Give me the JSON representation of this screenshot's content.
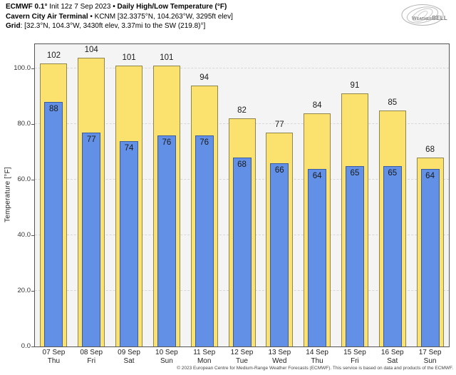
{
  "header": {
    "lines": [
      [
        {
          "text": "ECMWF 0.1°",
          "bold": true
        },
        {
          "text": " Init 12z 7 Sep 2023 ",
          "bold": false
        },
        {
          "text": "• Daily High/Low Temperature (°F)",
          "bold": true
        }
      ],
      [
        {
          "text": "Cavern City Air Terminal",
          "bold": true
        },
        {
          "text": " • KCNM [32.3375°N, 104.263°W, 3295ft elev]",
          "bold": false
        }
      ],
      [
        {
          "text": "Grid",
          "bold": true
        },
        {
          "text": ": [32.3°N, 104.3°W, 3430ft elev, 3.37mi to the SW (219.8)°]",
          "bold": false
        }
      ]
    ]
  },
  "logo": {
    "text_weather": "Weather",
    "text_bell": "BELL",
    "subtext": "Analytics LLC"
  },
  "chart_data": {
    "type": "bar",
    "title": "ECMWF 0.1° Init 12z 7 Sep 2023 • Daily High/Low Temperature (°F)",
    "subtitle": "Cavern City Air Terminal • KCNM [32.3375°N, 104.263°W, 3295ft elev]",
    "xlabel": "",
    "ylabel": "Temperature [°F]",
    "ylim": [
      0,
      108.8
    ],
    "grid": "dashed horizontal",
    "legend": "none",
    "yticks": [
      {
        "value": 0,
        "label": "0.0"
      },
      {
        "value": 20,
        "label": "20.0"
      },
      {
        "value": 40,
        "label": "40.0"
      },
      {
        "value": 60,
        "label": "60.0"
      },
      {
        "value": 80,
        "label": "80.0"
      },
      {
        "value": 100,
        "label": "100.0"
      }
    ],
    "days": [
      {
        "date": "07 Sep",
        "dow": "Thu",
        "high": 102,
        "low": 88
      },
      {
        "date": "08 Sep",
        "dow": "Fri",
        "high": 104,
        "low": 77
      },
      {
        "date": "09 Sep",
        "dow": "Sat",
        "high": 101,
        "low": 74
      },
      {
        "date": "10 Sep",
        "dow": "Sun",
        "high": 101,
        "low": 76
      },
      {
        "date": "11 Sep",
        "dow": "Mon",
        "high": 94,
        "low": 76
      },
      {
        "date": "12 Sep",
        "dow": "Tue",
        "high": 82,
        "low": 68
      },
      {
        "date": "13 Sep",
        "dow": "Wed",
        "high": 77,
        "low": 66
      },
      {
        "date": "14 Sep",
        "dow": "Thu",
        "high": 84,
        "low": 64
      },
      {
        "date": "15 Sep",
        "dow": "Fri",
        "high": 91,
        "low": 65
      },
      {
        "date": "16 Sep",
        "dow": "Sat",
        "high": 85,
        "low": 65
      },
      {
        "date": "17 Sep",
        "dow": "Sun",
        "high": 68,
        "low": 64
      }
    ]
  },
  "colors": {
    "high_fill": "#fbe26e",
    "high_border": "#8f854f",
    "low_fill": "#6190e6",
    "low_border": "#3b5c9e",
    "plot_bg": "#f4f4f4",
    "grid": "#d8d8d8",
    "axis": "#555555"
  },
  "footer": {
    "copyright": "© 2023 European Centre for Medium-Range Weather Forecasts (ECMWF). This service is based on data and products of the ECMWF."
  }
}
